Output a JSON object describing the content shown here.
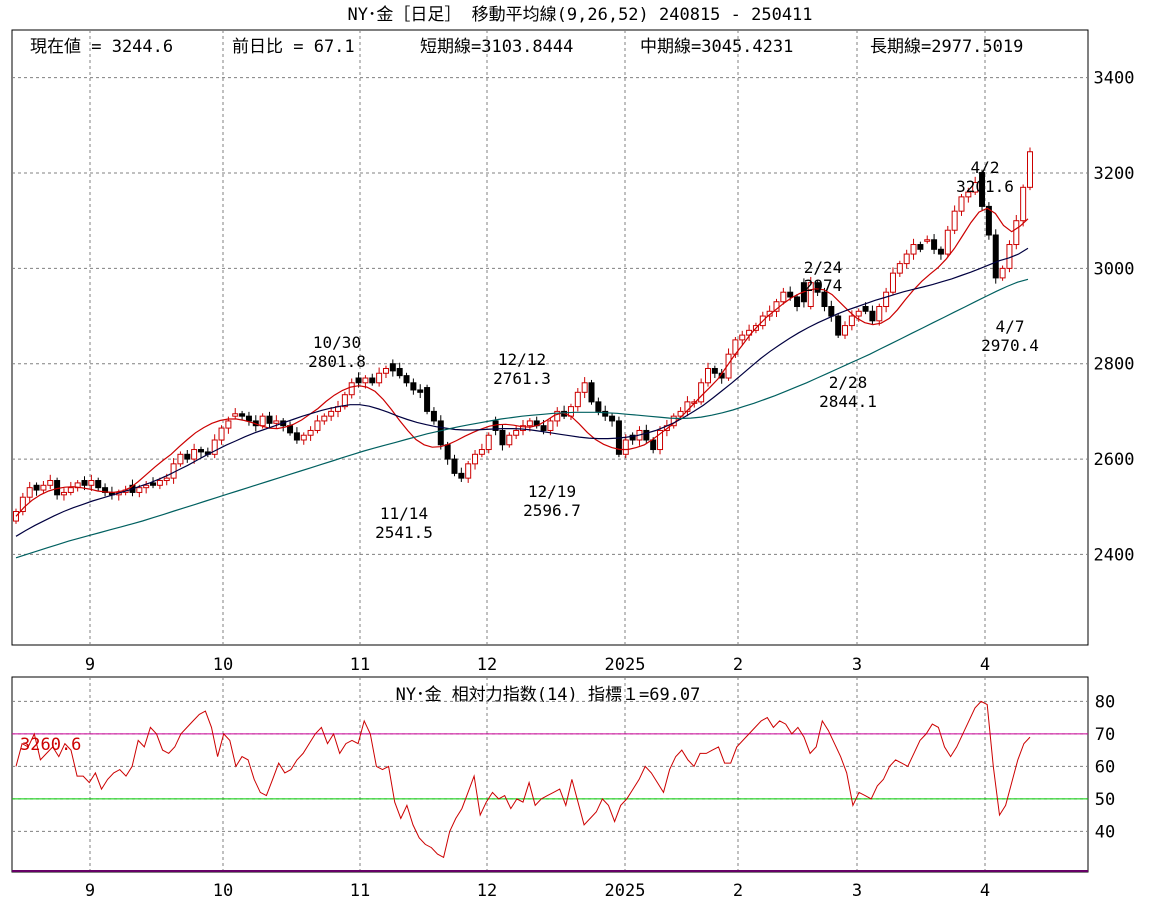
{
  "header": {
    "title": "NY･金［日足］ 移動平均線(9,26,52)  240815 - 250411",
    "current_label": "現在値 = 3244.6",
    "change_label": "前日比 = 67.1",
    "short_label": "短期線=3103.8444",
    "mid_label": "中期線=3045.4231",
    "long_label": "長期線=2977.5019"
  },
  "rsi_panel": {
    "title": "NY･金  相対力指数(14) 指標１=69.07",
    "marker_label": "3260.6"
  },
  "colors": {
    "up_candle": "#cc0000",
    "down_candle": "#000000",
    "ma_short": "#cc0000",
    "ma_mid": "#000040",
    "ma_long": "#006060",
    "rsi_line": "#cc0000",
    "rsi_70_line": "#cc0099",
    "rsi_50_line": "#00cc00",
    "grid": "#808080"
  },
  "chart_data": [
    {
      "type": "candlestick",
      "title": "NY･金［日足］ 移動平均線(9,26,52)",
      "date_range": "240815 - 250411",
      "x_tick_labels": [
        "9",
        "10",
        "11",
        "12",
        "2025",
        "2",
        "3",
        "4"
      ],
      "y_tick_labels": [
        "2400",
        "2600",
        "2800",
        "3000",
        "3200",
        "3400"
      ],
      "ylim": [
        2210,
        3500
      ],
      "grid": true,
      "series": [
        {
          "name": "短期線",
          "values": [
            2480,
            2499,
            2514,
            2525,
            2533,
            2538,
            2541,
            2542,
            2540,
            2537,
            2533,
            2531,
            2530,
            2533,
            2540,
            2553,
            2568,
            2583,
            2597,
            2610,
            2626,
            2641,
            2655,
            2666,
            2675,
            2681,
            2684,
            2684,
            2681,
            2676,
            2670,
            2665,
            2664,
            2667,
            2673,
            2682,
            2694,
            2706,
            2721,
            2734,
            2744,
            2751,
            2754,
            2751,
            2742,
            2725,
            2704,
            2681,
            2660,
            2641,
            2630,
            2625,
            2626,
            2631,
            2639,
            2648,
            2656,
            2663,
            2669,
            2672,
            2673,
            2671,
            2668,
            2667,
            2671,
            2681,
            2692,
            2697,
            2690,
            2674,
            2656,
            2641,
            2631,
            2624,
            2620,
            2620,
            2624,
            2630,
            2641,
            2654,
            2667,
            2681,
            2697,
            2715,
            2733,
            2750,
            2768,
            2792,
            2817,
            2839,
            2862,
            2881,
            2898,
            2912,
            2926,
            2938,
            2947,
            2954,
            2957,
            2955,
            2945,
            2928,
            2911,
            2896,
            2886,
            2882,
            2885,
            2895,
            2913,
            2935,
            2955,
            2973,
            2988,
            3002,
            3020,
            3042,
            3069,
            3096,
            3118,
            3126,
            3115,
            3090,
            3077,
            3088,
            3104
          ]
        },
        {
          "name": "中期線",
          "values": [
            2438,
            2450,
            2461,
            2471,
            2481,
            2490,
            2498,
            2505,
            2512,
            2518,
            2524,
            2530,
            2536,
            2543,
            2550,
            2558,
            2567,
            2577,
            2587,
            2598,
            2609,
            2619,
            2629,
            2638,
            2647,
            2655,
            2662,
            2669,
            2676,
            2683,
            2690,
            2696,
            2702,
            2707,
            2711,
            2714,
            2714,
            2711,
            2705,
            2698,
            2690,
            2683,
            2677,
            2672,
            2668,
            2665,
            2662,
            2661,
            2661,
            2662,
            2663,
            2664,
            2664,
            2663,
            2661,
            2658,
            2655,
            2652,
            2649,
            2646,
            2644,
            2643,
            2643,
            2644,
            2646,
            2649,
            2654,
            2660,
            2668,
            2677,
            2688,
            2700,
            2713,
            2728,
            2744,
            2760,
            2777,
            2794,
            2811,
            2826,
            2840,
            2853,
            2865,
            2876,
            2886,
            2895,
            2904,
            2912,
            2919,
            2926,
            2933,
            2939,
            2945,
            2951,
            2956,
            2961,
            2966,
            2972,
            2978,
            2985,
            2992,
            3000,
            3008,
            3016,
            3022,
            3030,
            3042
          ]
        },
        {
          "name": "長期線",
          "values": [
            2393,
            2400,
            2407,
            2414,
            2421,
            2428,
            2434,
            2440,
            2446,
            2452,
            2458,
            2464,
            2470,
            2477,
            2484,
            2491,
            2498,
            2505,
            2512,
            2519,
            2526,
            2533,
            2540,
            2547,
            2554,
            2561,
            2568,
            2575,
            2582,
            2589,
            2596,
            2603,
            2610,
            2617,
            2623,
            2629,
            2635,
            2641,
            2647,
            2653,
            2658,
            2663,
            2668,
            2672,
            2676,
            2680,
            2684,
            2687,
            2690,
            2692,
            2694,
            2696,
            2697,
            2698,
            2698,
            2698,
            2697,
            2696,
            2694,
            2692,
            2690,
            2688,
            2686,
            2685,
            2686,
            2688,
            2692,
            2697,
            2703,
            2710,
            2717,
            2725,
            2733,
            2742,
            2751,
            2760,
            2770,
            2780,
            2790,
            2800,
            2810,
            2820,
            2831,
            2842,
            2853,
            2864,
            2875,
            2886,
            2897,
            2908,
            2919,
            2930,
            2941,
            2952,
            2962,
            2971,
            2977
          ]
        }
      ],
      "annotations": [
        {
          "date": "10/30",
          "value": "2801.8",
          "kind": "high"
        },
        {
          "date": "11/14",
          "value": "2541.5",
          "kind": "low"
        },
        {
          "date": "12/12",
          "value": "2761.3",
          "kind": "high"
        },
        {
          "date": "12/19",
          "value": "2596.7",
          "kind": "low"
        },
        {
          "date": "2/24",
          "value": "2974",
          "kind": "high"
        },
        {
          "date": "2/28",
          "value": "2844.1",
          "kind": "low"
        },
        {
          "date": "4/2",
          "value": "3201.6",
          "kind": "high"
        },
        {
          "date": "4/7",
          "value": "2970.4",
          "kind": "low"
        }
      ],
      "candles_close": [
        2490,
        2520,
        2540,
        2535,
        2545,
        2555,
        2525,
        2530,
        2540,
        2550,
        2545,
        2555,
        2540,
        2530,
        2525,
        2530,
        2535,
        2530,
        2540,
        2545,
        2545,
        2555,
        2560,
        2590,
        2610,
        2600,
        2620,
        2615,
        2610,
        2640,
        2665,
        2680,
        2695,
        2690,
        2680,
        2670,
        2690,
        2675,
        2680,
        2670,
        2655,
        2640,
        2650,
        2660,
        2680,
        2690,
        2700,
        2710,
        2735,
        2760,
        2760,
        2770,
        2760,
        2780,
        2790,
        2785,
        2775,
        2760,
        2745,
        2740,
        2700,
        2680,
        2630,
        2600,
        2570,
        2560,
        2590,
        2610,
        2620,
        2650,
        2660,
        2630,
        2650,
        2660,
        2670,
        2680,
        2670,
        2660,
        2680,
        2700,
        2690,
        2710,
        2740,
        2760,
        2720,
        2700,
        2690,
        2680,
        2610,
        2640,
        2640,
        2660,
        2640,
        2620,
        2660,
        2670,
        2690,
        2700,
        2720,
        2720,
        2760,
        2790,
        2780,
        2770,
        2820,
        2850,
        2860,
        2870,
        2880,
        2900,
        2910,
        2930,
        2950,
        2940,
        2920,
        2930,
        2970,
        2950,
        2920,
        2900,
        2860,
        2880,
        2900,
        2910,
        2910,
        2890,
        2920,
        2950,
        2990,
        3010,
        3030,
        3050,
        3040,
        3060,
        3040,
        3030,
        3080,
        3120,
        3150,
        3160,
        3180,
        3130,
        3070,
        2980,
        3000,
        3050,
        3100,
        3170,
        3244.6
      ],
      "candles_open": [
        2470,
        2490,
        2520,
        2545,
        2535,
        2545,
        2555,
        2525,
        2530,
        2540,
        2555,
        2545,
        2555,
        2540,
        2530,
        2525,
        2530,
        2545,
        2530,
        2540,
        2550,
        2545,
        2555,
        2560,
        2590,
        2610,
        2600,
        2620,
        2615,
        2610,
        2640,
        2665,
        2690,
        2695,
        2690,
        2680,
        2670,
        2690,
        2675,
        2680,
        2670,
        2655,
        2640,
        2650,
        2660,
        2680,
        2690,
        2700,
        2710,
        2735,
        2770,
        2760,
        2770,
        2760,
        2780,
        2800,
        2790,
        2775,
        2760,
        2745,
        2750,
        2700,
        2680,
        2630,
        2600,
        2570,
        2560,
        2590,
        2610,
        2620,
        2680,
        2660,
        2630,
        2650,
        2660,
        2670,
        2680,
        2670,
        2660,
        2680,
        2700,
        2690,
        2710,
        2740,
        2760,
        2720,
        2700,
        2690,
        2680,
        2610,
        2650,
        2640,
        2660,
        2640,
        2620,
        2660,
        2670,
        2690,
        2700,
        2720,
        2720,
        2760,
        2790,
        2780,
        2770,
        2820,
        2850,
        2860,
        2870,
        2880,
        2900,
        2910,
        2930,
        2950,
        2940,
        2970,
        2920,
        2970,
        2950,
        2920,
        2900,
        2860,
        2880,
        2900,
        2920,
        2910,
        2890,
        2920,
        2950,
        2990,
        3010,
        3030,
        3050,
        3060,
        3060,
        3040,
        3030,
        3080,
        3120,
        3150,
        3160,
        3201,
        3130,
        3070,
        2980,
        3000,
        3050,
        3100,
        3170
      ]
    },
    {
      "type": "line",
      "title": "NY･金  相対力指数(14)",
      "indicator_value": "69.07",
      "x_tick_labels": [
        "9",
        "10",
        "11",
        "12",
        "2025",
        "2",
        "3",
        "4"
      ],
      "y_tick_labels": [
        "40",
        "50",
        "60",
        "70",
        "80"
      ],
      "ylim": [
        30,
        90
      ],
      "reference_lines": [
        70,
        50
      ],
      "series": [
        {
          "name": "相対力指数(14)",
          "values": [
            60,
            67,
            66,
            70,
            62,
            64,
            66,
            63,
            67,
            65,
            57,
            57,
            55,
            58,
            53,
            56,
            58,
            59,
            57,
            60,
            68,
            66,
            72,
            70,
            65,
            64,
            66,
            70,
            72,
            74,
            76,
            77,
            72,
            63,
            70,
            68,
            60,
            63,
            62,
            56,
            52,
            51,
            56,
            61,
            58,
            59,
            62,
            64,
            67,
            70,
            72,
            67,
            70,
            64,
            67,
            68,
            67,
            74,
            70,
            60,
            59,
            60,
            49,
            44,
            48,
            42,
            38,
            36,
            35,
            33,
            32,
            40,
            44,
            47,
            52,
            57,
            45,
            49,
            52,
            50,
            51,
            47,
            50,
            49,
            55,
            48,
            50,
            51,
            52,
            53,
            48,
            56,
            49,
            42,
            44,
            46,
            50,
            48,
            43,
            48,
            50,
            53,
            56,
            60,
            58,
            55,
            52,
            59,
            63,
            65,
            62,
            60,
            64,
            64,
            65,
            66,
            61,
            61,
            66,
            68,
            70,
            72,
            74,
            75,
            72,
            74,
            73,
            70,
            72,
            69,
            64,
            66,
            74,
            71,
            67,
            63,
            58,
            48,
            52,
            51,
            50,
            54,
            56,
            60,
            62,
            61,
            60,
            64,
            68,
            70,
            73,
            72,
            66,
            63,
            66,
            70,
            74,
            78,
            80,
            79,
            60,
            45,
            48,
            55,
            62,
            67,
            69
          ]
        }
      ]
    }
  ]
}
